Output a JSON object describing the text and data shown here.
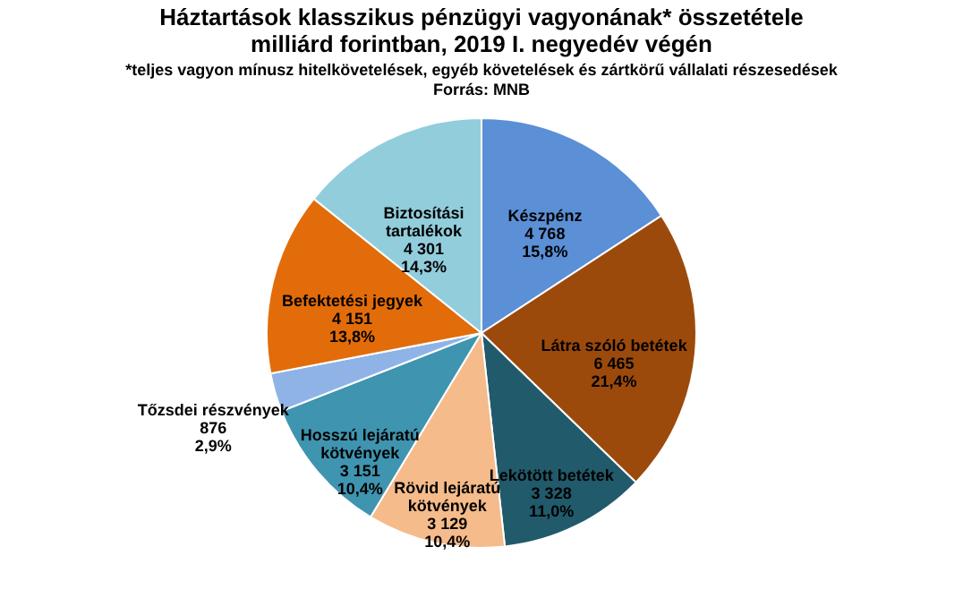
{
  "chart_data": {
    "type": "pie",
    "title": [
      "Háztartások klasszikus pénzügyi vagyonának* összetétele",
      "milliárd forintban, 2019  I. negyedév végén"
    ],
    "subtitle": "*teljes vagyon mínusz hitelkövetelések, egyéb követelések és zártkörű vállalati részesedések",
    "annotations": [
      "Forrás: MNB"
    ],
    "categories": [
      "Készpénz",
      "Látra szóló betétek",
      "Lekötött betétek",
      "Rövid lejáratú kötvények",
      "Hosszú lejáratú kötvények",
      "Tőzsdei részvények",
      "Befektetési jegyek",
      "Biztosítási tartalékok"
    ],
    "values": [
      4768,
      6465,
      3328,
      3129,
      3151,
      876,
      4151,
      4301
    ],
    "value_labels": [
      "4 768\n15,8%",
      "6 465\n21,4%",
      "3 328\n11,0%",
      "3 129\n10,4%",
      "3 151\n10,4%",
      "876\n2,9%",
      "4 151\n13,8%",
      "4 301\n14,3%"
    ],
    "colors": [
      "#5b8fd6",
      "#9c4a0c",
      "#215a6b",
      "#f5bb8a",
      "#3f94b0",
      "#8fb3e6",
      "#e36c0a",
      "#92cddc"
    ]
  }
}
